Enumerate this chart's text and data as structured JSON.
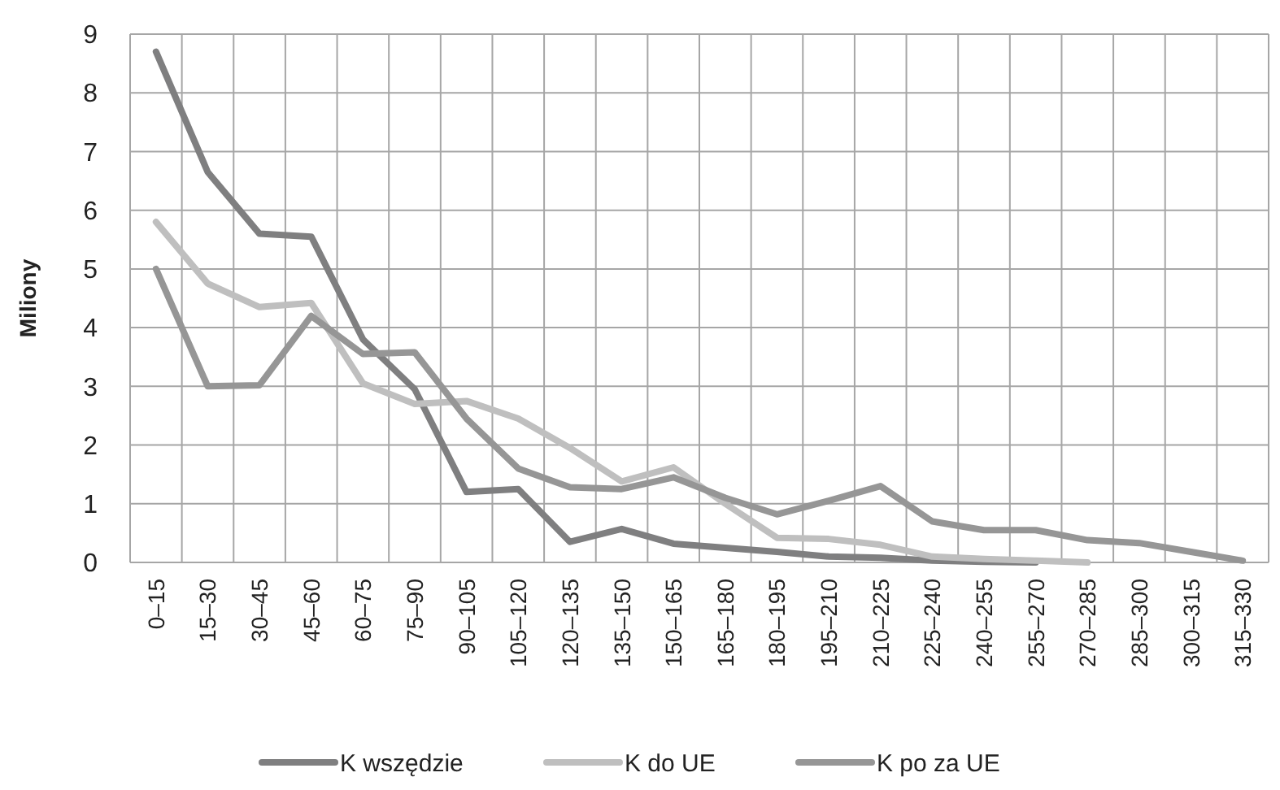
{
  "chart_data": {
    "type": "line",
    "ylabel": "Miliony",
    "categories": [
      "0–15",
      "15–30",
      "30–45",
      "45–60",
      "60–75",
      "75–90",
      "90–105",
      "105–120",
      "120–135",
      "135–150",
      "150–165",
      "165–180",
      "180–195",
      "195–210",
      "210–225",
      "225–240",
      "240–255",
      "255–270",
      "270–285",
      "285–300",
      "300–315",
      "315–330"
    ],
    "series": [
      {
        "name": "K wszędzie",
        "color": "#7f7f80",
        "values": [
          8.7,
          6.65,
          5.6,
          5.55,
          3.8,
          2.95,
          1.2,
          1.25,
          0.35,
          0.57,
          0.32,
          0.25,
          0.18,
          0.1,
          0.08,
          0.03,
          0.01,
          0.0,
          null,
          null,
          null,
          null
        ]
      },
      {
        "name": "K do UE",
        "color": "#bfbfbf",
        "values": [
          5.8,
          4.75,
          4.35,
          4.42,
          3.05,
          2.7,
          2.75,
          2.45,
          1.95,
          1.38,
          1.62,
          1.0,
          0.42,
          0.4,
          0.3,
          0.1,
          0.06,
          0.03,
          0.0,
          null,
          null,
          null
        ]
      },
      {
        "name": "K po za UE",
        "color": "#969696",
        "values": [
          5.0,
          3.0,
          3.02,
          4.2,
          3.55,
          3.58,
          2.45,
          1.6,
          1.28,
          1.25,
          1.45,
          1.1,
          0.82,
          1.05,
          1.3,
          0.7,
          0.55,
          0.55,
          0.38,
          0.33,
          0.18,
          0.03
        ]
      }
    ],
    "ylim": [
      0,
      9
    ],
    "yticks": [
      0,
      1,
      2,
      3,
      4,
      5,
      6,
      7,
      8,
      9
    ],
    "grid": true,
    "legend": "bottom",
    "marker": "none",
    "line_style": "solid"
  }
}
